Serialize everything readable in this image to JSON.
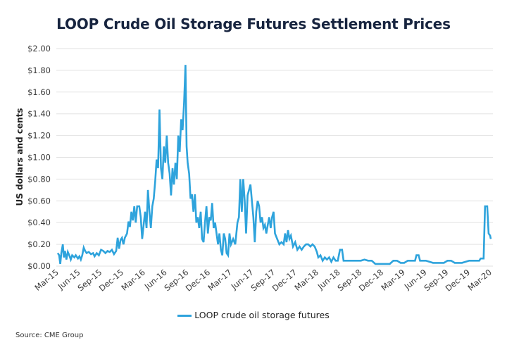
{
  "chart_data": {
    "type": "line",
    "title": "LOOP Crude Oil Storage Futures Settlement Prices",
    "xlabel": "",
    "ylabel": "US dollars and cents",
    "ylim": [
      0,
      2.0
    ],
    "y_ticks": [
      "$0.00",
      "$0.20",
      "$0.40",
      "$0.60",
      "$0.80",
      "$1.00",
      "$1.20",
      "$1.40",
      "$1.60",
      "$1.80",
      "$2.00"
    ],
    "y_tick_values": [
      0,
      0.2,
      0.4,
      0.6,
      0.8,
      1.0,
      1.2,
      1.4,
      1.6,
      1.8,
      2.0
    ],
    "x_ticks": [
      "Mar-15",
      "Jun-15",
      "Sep-15",
      "Dec-15",
      "Mar-16",
      "Jun-16",
      "Sep-16",
      "Dec-16",
      "Mar-17",
      "Jun-17",
      "Sep-17",
      "Dec-17",
      "Mar-18",
      "Jun-18",
      "Sep-18",
      "Dec-18",
      "Mar-19",
      "Jun-19",
      "Sep-19",
      "Dec-19",
      "Mar-20"
    ],
    "x_unit": "months since Mar-15",
    "xlim": [
      0,
      60
    ],
    "grid": true,
    "legend_position": "bottom",
    "series": [
      {
        "name": "LOOP crude oil storage futures",
        "color": "#2ea3dc",
        "points": [
          [
            0.0,
            0.12
          ],
          [
            0.2,
            0.1
          ],
          [
            0.35,
            0.02
          ],
          [
            0.5,
            0.12
          ],
          [
            0.7,
            0.2
          ],
          [
            0.85,
            0.08
          ],
          [
            1.0,
            0.14
          ],
          [
            1.2,
            0.06
          ],
          [
            1.4,
            0.13
          ],
          [
            1.6,
            0.1
          ],
          [
            1.8,
            0.06
          ],
          [
            2.0,
            0.1
          ],
          [
            2.3,
            0.08
          ],
          [
            2.5,
            0.1
          ],
          [
            2.8,
            0.07
          ],
          [
            3.0,
            0.09
          ],
          [
            3.2,
            0.06
          ],
          [
            3.4,
            0.1
          ],
          [
            3.6,
            0.17
          ],
          [
            3.8,
            0.14
          ],
          [
            4.0,
            0.12
          ],
          [
            4.3,
            0.13
          ],
          [
            4.6,
            0.11
          ],
          [
            4.9,
            0.12
          ],
          [
            5.1,
            0.09
          ],
          [
            5.4,
            0.12
          ],
          [
            5.7,
            0.1
          ],
          [
            6.0,
            0.15
          ],
          [
            6.3,
            0.14
          ],
          [
            6.6,
            0.12
          ],
          [
            6.9,
            0.14
          ],
          [
            7.2,
            0.13
          ],
          [
            7.5,
            0.15
          ],
          [
            7.8,
            0.11
          ],
          [
            8.1,
            0.14
          ],
          [
            8.3,
            0.26
          ],
          [
            8.5,
            0.16
          ],
          [
            8.7,
            0.24
          ],
          [
            8.9,
            0.26
          ],
          [
            9.1,
            0.2
          ],
          [
            9.3,
            0.26
          ],
          [
            9.6,
            0.3
          ],
          [
            9.8,
            0.41
          ],
          [
            10.0,
            0.36
          ],
          [
            10.2,
            0.5
          ],
          [
            10.4,
            0.42
          ],
          [
            10.6,
            0.55
          ],
          [
            10.8,
            0.4
          ],
          [
            11.0,
            0.55
          ],
          [
            11.3,
            0.55
          ],
          [
            11.5,
            0.45
          ],
          [
            11.7,
            0.25
          ],
          [
            11.9,
            0.38
          ],
          [
            12.1,
            0.5
          ],
          [
            12.3,
            0.35
          ],
          [
            12.5,
            0.7
          ],
          [
            12.7,
            0.5
          ],
          [
            12.9,
            0.35
          ],
          [
            13.1,
            0.55
          ],
          [
            13.3,
            0.62
          ],
          [
            13.5,
            0.78
          ],
          [
            13.7,
            0.98
          ],
          [
            13.9,
            0.9
          ],
          [
            14.1,
            1.44
          ],
          [
            14.3,
            0.9
          ],
          [
            14.5,
            0.8
          ],
          [
            14.7,
            1.1
          ],
          [
            14.9,
            0.95
          ],
          [
            15.1,
            1.2
          ],
          [
            15.3,
            0.95
          ],
          [
            15.5,
            0.85
          ],
          [
            15.7,
            0.65
          ],
          [
            15.9,
            0.9
          ],
          [
            16.1,
            0.75
          ],
          [
            16.3,
            0.95
          ],
          [
            16.5,
            0.8
          ],
          [
            16.7,
            1.2
          ],
          [
            16.9,
            1.05
          ],
          [
            17.1,
            1.35
          ],
          [
            17.3,
            1.25
          ],
          [
            17.5,
            1.5
          ],
          [
            17.7,
            1.85
          ],
          [
            17.85,
            1.1
          ],
          [
            18.0,
            0.95
          ],
          [
            18.2,
            0.85
          ],
          [
            18.4,
            0.62
          ],
          [
            18.6,
            0.66
          ],
          [
            18.8,
            0.5
          ],
          [
            19.0,
            0.66
          ],
          [
            19.2,
            0.4
          ],
          [
            19.4,
            0.45
          ],
          [
            19.6,
            0.35
          ],
          [
            19.8,
            0.5
          ],
          [
            20.0,
            0.25
          ],
          [
            20.2,
            0.22
          ],
          [
            20.4,
            0.4
          ],
          [
            20.6,
            0.55
          ],
          [
            20.8,
            0.3
          ],
          [
            21.0,
            0.45
          ],
          [
            21.2,
            0.42
          ],
          [
            21.4,
            0.58
          ],
          [
            21.6,
            0.35
          ],
          [
            21.8,
            0.4
          ],
          [
            22.0,
            0.3
          ],
          [
            22.2,
            0.2
          ],
          [
            22.4,
            0.3
          ],
          [
            22.6,
            0.15
          ],
          [
            22.8,
            0.1
          ],
          [
            23.0,
            0.3
          ],
          [
            23.2,
            0.25
          ],
          [
            23.4,
            0.12
          ],
          [
            23.6,
            0.1
          ],
          [
            23.8,
            0.3
          ],
          [
            24.0,
            0.2
          ],
          [
            24.3,
            0.25
          ],
          [
            24.6,
            0.2
          ],
          [
            24.9,
            0.4
          ],
          [
            25.1,
            0.45
          ],
          [
            25.3,
            0.8
          ],
          [
            25.5,
            0.5
          ],
          [
            25.7,
            0.8
          ],
          [
            25.9,
            0.6
          ],
          [
            26.1,
            0.3
          ],
          [
            26.3,
            0.65
          ],
          [
            26.5,
            0.7
          ],
          [
            26.7,
            0.75
          ],
          [
            26.9,
            0.6
          ],
          [
            27.1,
            0.45
          ],
          [
            27.3,
            0.22
          ],
          [
            27.5,
            0.5
          ],
          [
            27.7,
            0.6
          ],
          [
            27.9,
            0.55
          ],
          [
            28.1,
            0.4
          ],
          [
            28.3,
            0.45
          ],
          [
            28.5,
            0.35
          ],
          [
            28.7,
            0.38
          ],
          [
            28.9,
            0.3
          ],
          [
            29.1,
            0.38
          ],
          [
            29.3,
            0.45
          ],
          [
            29.5,
            0.35
          ],
          [
            29.7,
            0.45
          ],
          [
            29.9,
            0.5
          ],
          [
            30.1,
            0.3
          ],
          [
            30.4,
            0.25
          ],
          [
            30.7,
            0.2
          ],
          [
            31.0,
            0.22
          ],
          [
            31.3,
            0.2
          ],
          [
            31.5,
            0.3
          ],
          [
            31.7,
            0.22
          ],
          [
            31.9,
            0.33
          ],
          [
            32.1,
            0.25
          ],
          [
            32.3,
            0.28
          ],
          [
            32.6,
            0.18
          ],
          [
            32.9,
            0.22
          ],
          [
            33.2,
            0.15
          ],
          [
            33.5,
            0.18
          ],
          [
            33.8,
            0.15
          ],
          [
            34.1,
            0.18
          ],
          [
            34.4,
            0.2
          ],
          [
            34.7,
            0.2
          ],
          [
            35.0,
            0.18
          ],
          [
            35.3,
            0.2
          ],
          [
            35.6,
            0.18
          ],
          [
            35.9,
            0.13
          ],
          [
            36.1,
            0.08
          ],
          [
            36.4,
            0.1
          ],
          [
            36.7,
            0.05
          ],
          [
            37.0,
            0.08
          ],
          [
            37.3,
            0.06
          ],
          [
            37.6,
            0.08
          ],
          [
            37.9,
            0.04
          ],
          [
            38.2,
            0.08
          ],
          [
            38.5,
            0.05
          ],
          [
            38.8,
            0.05
          ],
          [
            39.1,
            0.15
          ],
          [
            39.4,
            0.15
          ],
          [
            39.6,
            0.05
          ],
          [
            40.0,
            0.05
          ],
          [
            41.0,
            0.05
          ],
          [
            42.0,
            0.05
          ],
          [
            42.5,
            0.06
          ],
          [
            43.0,
            0.05
          ],
          [
            43.5,
            0.05
          ],
          [
            44.0,
            0.02
          ],
          [
            45.0,
            0.02
          ],
          [
            46.0,
            0.02
          ],
          [
            46.5,
            0.05
          ],
          [
            47.0,
            0.05
          ],
          [
            47.5,
            0.03
          ],
          [
            48.0,
            0.03
          ],
          [
            48.5,
            0.05
          ],
          [
            49.0,
            0.05
          ],
          [
            49.5,
            0.05
          ],
          [
            49.7,
            0.1
          ],
          [
            50.0,
            0.1
          ],
          [
            50.2,
            0.05
          ],
          [
            51.0,
            0.05
          ],
          [
            52.0,
            0.03
          ],
          [
            53.0,
            0.03
          ],
          [
            53.5,
            0.03
          ],
          [
            54.0,
            0.05
          ],
          [
            54.5,
            0.05
          ],
          [
            55.0,
            0.03
          ],
          [
            56.0,
            0.03
          ],
          [
            57.0,
            0.05
          ],
          [
            58.0,
            0.05
          ],
          [
            58.4,
            0.05
          ],
          [
            58.6,
            0.07
          ],
          [
            59.0,
            0.07
          ],
          [
            59.2,
            0.55
          ],
          [
            59.5,
            0.55
          ],
          [
            59.7,
            0.3
          ],
          [
            59.9,
            0.28
          ],
          [
            60.0,
            0.25
          ]
        ]
      }
    ],
    "source": "Source: CME Group"
  }
}
